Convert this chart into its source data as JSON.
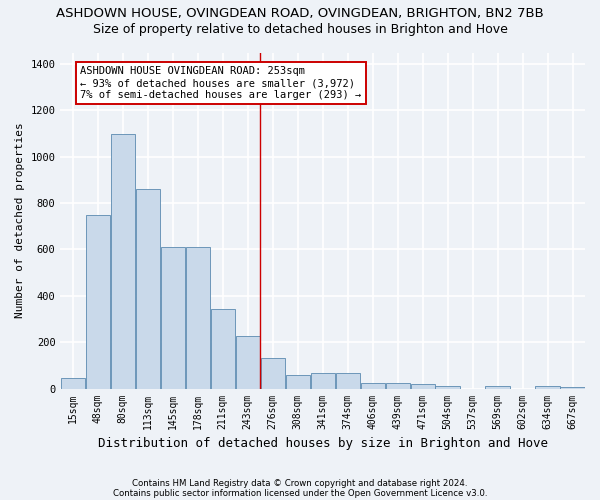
{
  "title": "ASHDOWN HOUSE, OVINGDEAN ROAD, OVINGDEAN, BRIGHTON, BN2 7BB",
  "subtitle": "Size of property relative to detached houses in Brighton and Hove",
  "xlabel": "Distribution of detached houses by size in Brighton and Hove",
  "ylabel": "Number of detached properties",
  "footnote1": "Contains HM Land Registry data © Crown copyright and database right 2024.",
  "footnote2": "Contains public sector information licensed under the Open Government Licence v3.0.",
  "categories": [
    "15sqm",
    "48sqm",
    "80sqm",
    "113sqm",
    "145sqm",
    "178sqm",
    "211sqm",
    "243sqm",
    "276sqm",
    "308sqm",
    "341sqm",
    "374sqm",
    "406sqm",
    "439sqm",
    "471sqm",
    "504sqm",
    "537sqm",
    "569sqm",
    "602sqm",
    "634sqm",
    "667sqm"
  ],
  "values": [
    45,
    750,
    1100,
    860,
    610,
    610,
    345,
    225,
    130,
    60,
    65,
    65,
    25,
    25,
    20,
    13,
    0,
    10,
    0,
    10,
    5
  ],
  "bar_color": "#c9d9ea",
  "bar_edge_color": "#5a8ab0",
  "vline_color": "#cc0000",
  "annotation_text": "ASHDOWN HOUSE OVINGDEAN ROAD: 253sqm\n← 93% of detached houses are smaller (3,972)\n7% of semi-detached houses are larger (293) →",
  "ylim": [
    0,
    1450
  ],
  "yticks": [
    0,
    200,
    400,
    600,
    800,
    1000,
    1200,
    1400
  ],
  "background_color": "#eef2f7",
  "grid_color": "#ffffff",
  "title_fontsize": 9.5,
  "subtitle_fontsize": 9,
  "ylabel_fontsize": 8,
  "xlabel_fontsize": 9,
  "tick_fontsize": 7,
  "annot_fontsize": 7.5,
  "footnote_fontsize": 6.2
}
